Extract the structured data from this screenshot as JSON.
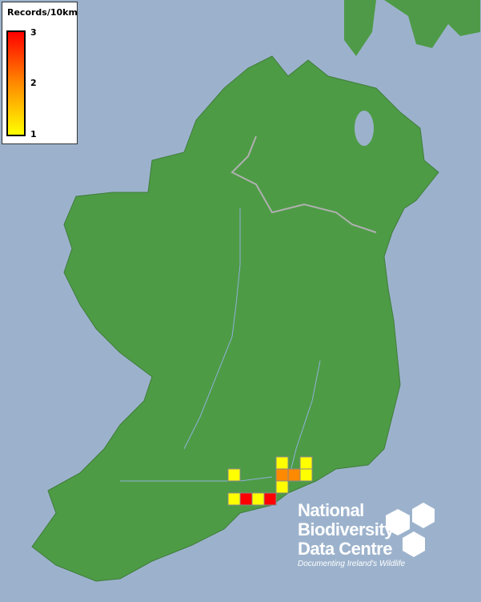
{
  "legend": {
    "title": "Records/10km",
    "max": "3",
    "mid": "2",
    "min": "1",
    "colors": {
      "max": "#ff0000",
      "mid": "#ff8a00",
      "min": "#ffff00"
    }
  },
  "records": [
    {
      "col": 4,
      "row": 0,
      "value": 1
    },
    {
      "col": 6,
      "row": 0,
      "value": 1
    },
    {
      "col": 0,
      "row": 1,
      "value": 1
    },
    {
      "col": 4,
      "row": 1,
      "value": 2
    },
    {
      "col": 5,
      "row": 1,
      "value": 2
    },
    {
      "col": 6,
      "row": 1,
      "value": 1
    },
    {
      "col": 4,
      "row": 2,
      "value": 1
    },
    {
      "col": 0,
      "row": 3,
      "value": 1
    },
    {
      "col": 1,
      "row": 3,
      "value": 3
    },
    {
      "col": 2,
      "row": 3,
      "value": 1
    },
    {
      "col": 3,
      "row": 3,
      "value": 3
    }
  ],
  "logo": {
    "line1": "National",
    "line2": "Biodiversity",
    "line3": "Data Centre",
    "tagline": "Documenting Ireland's Wildlife"
  }
}
